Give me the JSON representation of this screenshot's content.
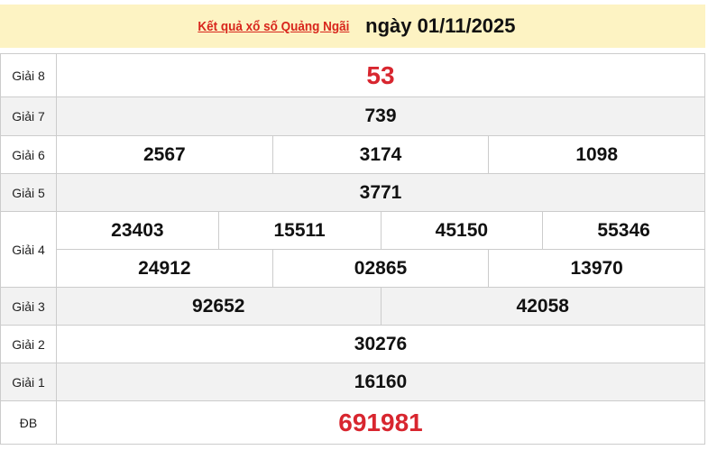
{
  "header": {
    "link": "Kết quả xổ số Quảng Ngãi",
    "date": "ngày 01/11/2025"
  },
  "prizes": [
    {
      "label": "Giải 8",
      "rows": [
        [
          "53"
        ]
      ]
    },
    {
      "label": "Giải 7",
      "rows": [
        [
          "739"
        ]
      ]
    },
    {
      "label": "Giải 6",
      "rows": [
        [
          "2567",
          "3174",
          "1098"
        ]
      ]
    },
    {
      "label": "Giải 5",
      "rows": [
        [
          "3771"
        ]
      ]
    },
    {
      "label": "Giải 4",
      "rows": [
        [
          "23403",
          "15511",
          "45150",
          "55346"
        ],
        [
          "24912",
          "02865",
          "13970"
        ]
      ]
    },
    {
      "label": "Giải 3",
      "rows": [
        [
          "92652",
          "42058"
        ]
      ]
    },
    {
      "label": "Giải 2",
      "rows": [
        [
          "30276"
        ]
      ]
    },
    {
      "label": "Giải 1",
      "rows": [
        [
          "16160"
        ]
      ]
    },
    {
      "label": "ĐB",
      "rows": [
        [
          "691981"
        ]
      ]
    }
  ],
  "colors": {
    "accent_red": "#d8262f",
    "header_bg": "#fdf3c3"
  }
}
